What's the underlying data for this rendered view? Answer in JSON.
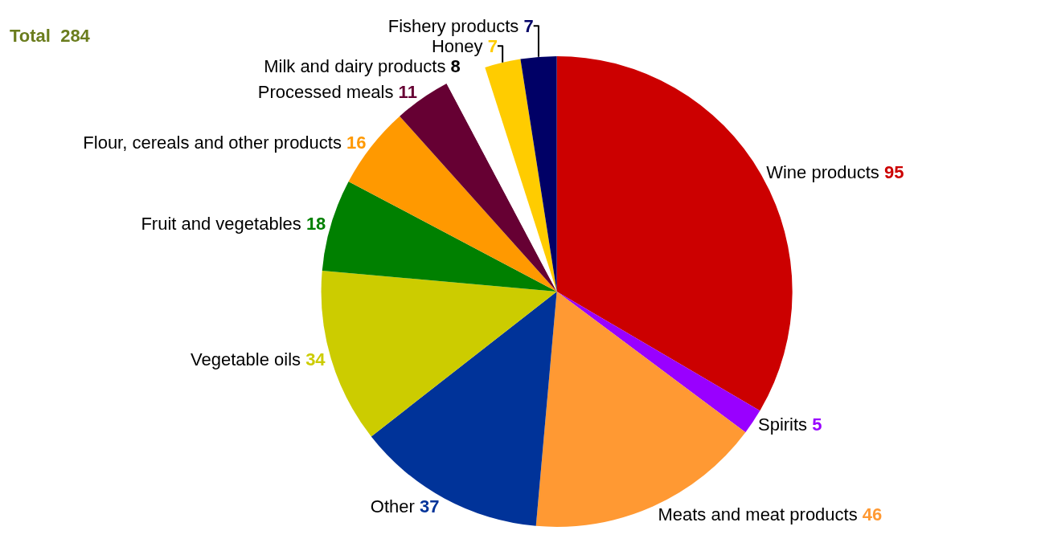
{
  "chart_data": {
    "type": "pie",
    "annotations": [
      "Total  284"
    ],
    "categories": [
      "Wine products",
      "Spirits",
      "Meats and meat products",
      "Other",
      "Vegetable oils",
      "Fruit and vegetables",
      "Flour, cereals and other products",
      "Processed meals",
      "Milk and dairy products",
      "Honey",
      "Fishery products"
    ],
    "values": [
      95,
      5,
      46,
      37,
      34,
      18,
      16,
      11,
      8,
      7,
      7
    ],
    "colors": [
      "#cc0000",
      "#9900ff",
      "#ff9933",
      "#003399",
      "#cccc00",
      "#008000",
      "#ff9900",
      "#660033",
      "#ffffff",
      "#ffcc00",
      "#000066"
    ],
    "data_labels": true,
    "legend": false
  }
}
